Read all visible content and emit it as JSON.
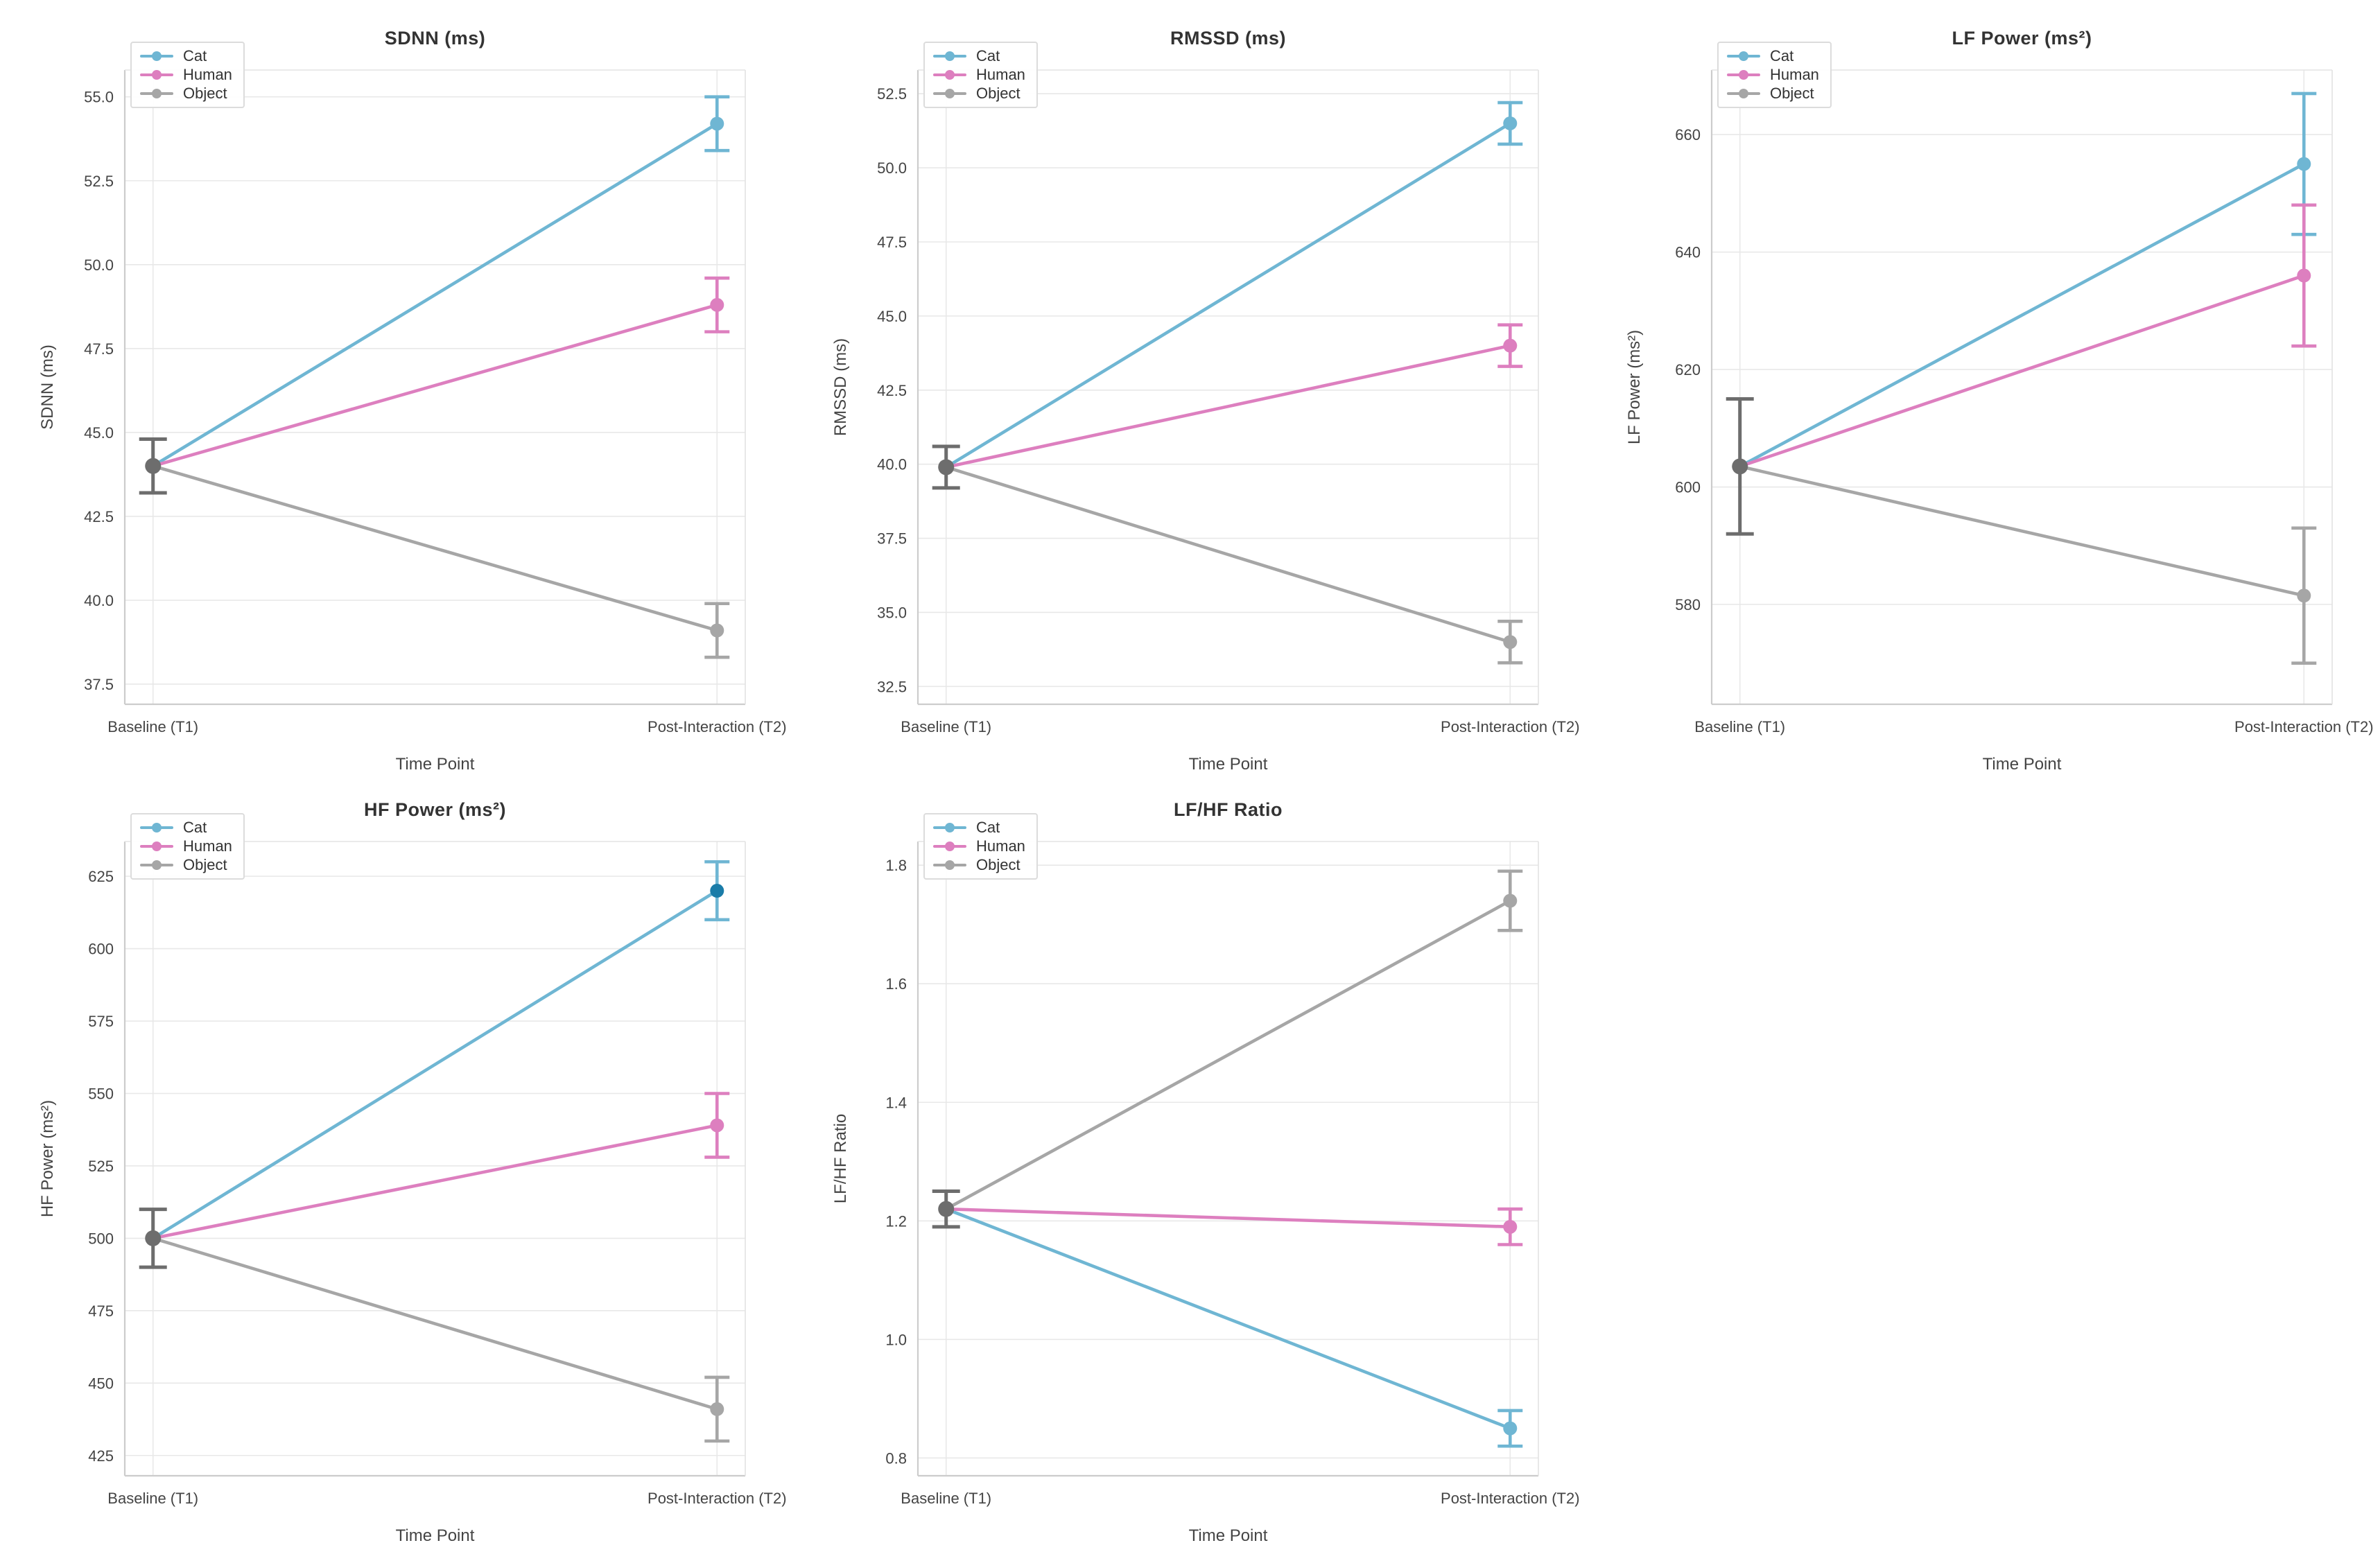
{
  "figure": {
    "background": "#ffffff",
    "grid_color": "#e8e8e8",
    "spine_color": "#cccccc",
    "text_color": "#3d3d3d",
    "tick_color": "#444444",
    "baseline_point_color": "#6d6d6d",
    "legend_labels": [
      "Cat",
      "Human",
      "Object"
    ],
    "series_colors": {
      "cat": "#6fb6d3",
      "human": "#dd7fbf",
      "object": "#a6a6a6"
    }
  },
  "chart_data": [
    {
      "type": "line",
      "title": "SDNN (ms)",
      "ylabel": "SDNN (ms)",
      "xlabel": "Time Point",
      "categories": [
        "Baseline (T1)",
        "Post-Interaction (T2)"
      ],
      "ytick_labels": [
        "37.5",
        "40.0",
        "42.5",
        "45.0",
        "47.5",
        "50.0",
        "52.5",
        "55.0"
      ],
      "yticks": [
        37.5,
        40.0,
        42.5,
        45.0,
        47.5,
        50.0,
        52.5,
        55.0
      ],
      "ylim": [
        36.9,
        55.8
      ],
      "grid": true,
      "legend_position": "upper left",
      "baseline": {
        "value": 44.0,
        "error": 0.8
      },
      "series": [
        {
          "name": "Cat",
          "color": "#6fb6d3",
          "values": [
            44.0,
            54.2
          ],
          "errors": [
            0.8,
            0.8
          ]
        },
        {
          "name": "Human",
          "color": "#dd7fbf",
          "values": [
            44.0,
            48.8
          ],
          "errors": [
            0.8,
            0.8
          ]
        },
        {
          "name": "Object",
          "color": "#a6a6a6",
          "values": [
            44.0,
            39.1
          ],
          "errors": [
            0.8,
            0.8
          ]
        }
      ]
    },
    {
      "type": "line",
      "title": "RMSSD (ms)",
      "ylabel": "RMSSD (ms)",
      "xlabel": "Time Point",
      "categories": [
        "Baseline (T1)",
        "Post-Interaction (T2)"
      ],
      "ytick_labels": [
        "32.5",
        "35.0",
        "37.5",
        "40.0",
        "42.5",
        "45.0",
        "47.5",
        "50.0",
        "52.5"
      ],
      "yticks": [
        32.5,
        35.0,
        37.5,
        40.0,
        42.5,
        45.0,
        47.5,
        50.0,
        52.5
      ],
      "ylim": [
        31.9,
        53.3
      ],
      "grid": true,
      "legend_position": "upper left",
      "baseline": {
        "value": 39.9,
        "error": 0.7
      },
      "series": [
        {
          "name": "Cat",
          "color": "#6fb6d3",
          "values": [
            39.9,
            51.5
          ],
          "errors": [
            0.7,
            0.7
          ]
        },
        {
          "name": "Human",
          "color": "#dd7fbf",
          "values": [
            39.9,
            44.0
          ],
          "errors": [
            0.7,
            0.7
          ]
        },
        {
          "name": "Object",
          "color": "#a6a6a6",
          "values": [
            39.9,
            34.0
          ],
          "errors": [
            0.7,
            0.7
          ]
        }
      ]
    },
    {
      "type": "line",
      "title": "LF Power (ms²)",
      "ylabel": "LF Power (ms²)",
      "xlabel": "Time Point",
      "categories": [
        "Baseline (T1)",
        "Post-Interaction (T2)"
      ],
      "ytick_labels": [
        "580",
        "600",
        "620",
        "640",
        "660"
      ],
      "yticks": [
        580,
        600,
        620,
        640,
        660
      ],
      "ylim": [
        563,
        671
      ],
      "grid": true,
      "legend_position": "upper left",
      "baseline": {
        "value": 603.5,
        "error": 11.5
      },
      "series": [
        {
          "name": "Cat",
          "color": "#6fb6d3",
          "values": [
            603.5,
            655.0
          ],
          "errors": [
            11.5,
            12.0
          ]
        },
        {
          "name": "Human",
          "color": "#dd7fbf",
          "values": [
            603.5,
            636.0
          ],
          "errors": [
            11.5,
            12.0
          ]
        },
        {
          "name": "Object",
          "color": "#a6a6a6",
          "values": [
            603.5,
            581.5
          ],
          "errors": [
            11.5,
            11.5
          ]
        }
      ]
    },
    {
      "type": "line",
      "title": "HF Power (ms²)",
      "ylabel": "HF Power (ms²)",
      "xlabel": "Time Point",
      "categories": [
        "Baseline (T1)",
        "Post-Interaction (T2)"
      ],
      "ytick_labels": [
        "425",
        "450",
        "475",
        "500",
        "525",
        "550",
        "575",
        "600",
        "625"
      ],
      "yticks": [
        425,
        450,
        475,
        500,
        525,
        550,
        575,
        600,
        625
      ],
      "ylim": [
        418,
        637
      ],
      "grid": true,
      "legend_position": "upper left",
      "baseline": {
        "value": 500.0,
        "error": 10.0
      },
      "series": [
        {
          "name": "Cat",
          "color": "#6fb6d3",
          "values": [
            500.0,
            620.0
          ],
          "errors": [
            10.0,
            10.0
          ],
          "t2_marker_color": "#1a7ca8"
        },
        {
          "name": "Human",
          "color": "#dd7fbf",
          "values": [
            500.0,
            539.0
          ],
          "errors": [
            10.0,
            11.0
          ]
        },
        {
          "name": "Object",
          "color": "#a6a6a6",
          "values": [
            500.0,
            441.0
          ],
          "errors": [
            10.0,
            11.0
          ]
        }
      ]
    },
    {
      "type": "line",
      "title": "LF/HF Ratio",
      "ylabel": "LF/HF Ratio",
      "xlabel": "Time Point",
      "categories": [
        "Baseline (T1)",
        "Post-Interaction (T2)"
      ],
      "ytick_labels": [
        "0.8",
        "1.0",
        "1.2",
        "1.4",
        "1.6",
        "1.8"
      ],
      "yticks": [
        0.8,
        1.0,
        1.2,
        1.4,
        1.6,
        1.8
      ],
      "ylim": [
        0.77,
        1.84
      ],
      "grid": true,
      "legend_position": "upper left",
      "baseline": {
        "value": 1.22,
        "error": 0.03
      },
      "series": [
        {
          "name": "Cat",
          "color": "#6fb6d3",
          "values": [
            1.22,
            0.85
          ],
          "errors": [
            0.03,
            0.03
          ]
        },
        {
          "name": "Human",
          "color": "#dd7fbf",
          "values": [
            1.22,
            1.19
          ],
          "errors": [
            0.03,
            0.03
          ]
        },
        {
          "name": "Object",
          "color": "#a6a6a6",
          "values": [
            1.22,
            1.74
          ],
          "errors": [
            0.03,
            0.05
          ]
        }
      ]
    }
  ]
}
